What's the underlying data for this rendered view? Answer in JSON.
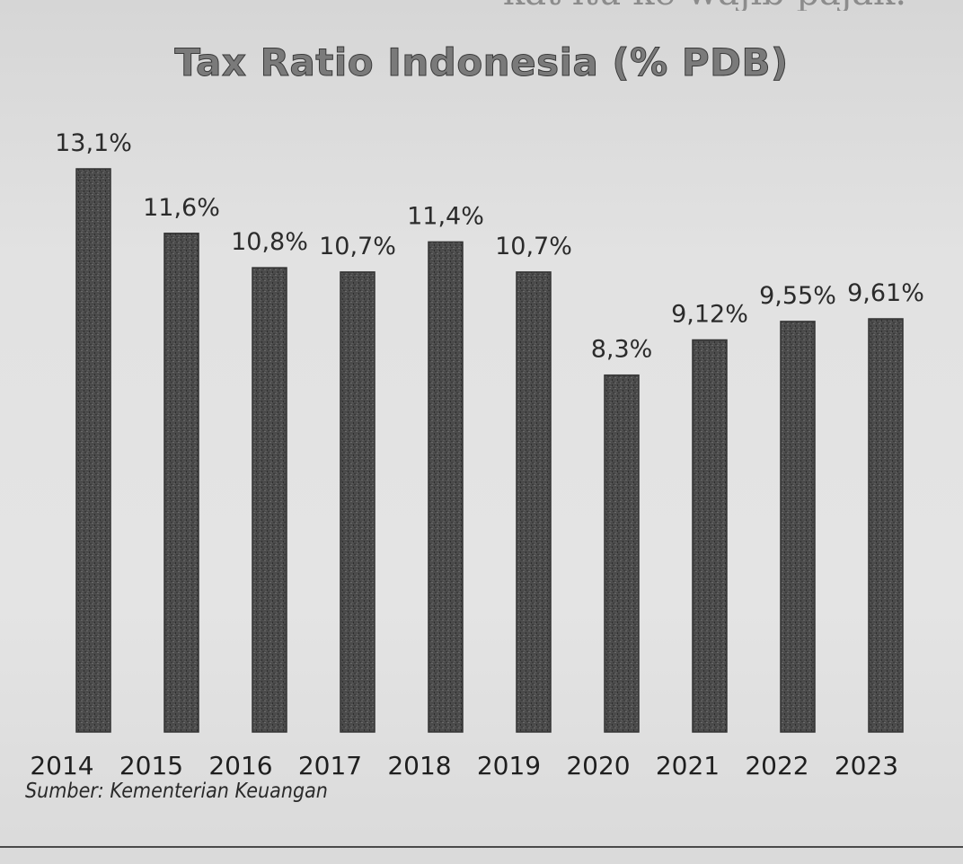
{
  "header": {
    "partial_text": "kat itu ke wajib pajak."
  },
  "chart_data": {
    "type": "bar",
    "title": "Tax Ratio Indonesia (% PDB)",
    "categories": [
      "2014",
      "2015",
      "2016",
      "2017",
      "2018",
      "2019",
      "2020",
      "2021",
      "2022",
      "2023"
    ],
    "values": [
      13.1,
      11.6,
      10.8,
      10.7,
      11.4,
      10.7,
      8.3,
      9.12,
      9.55,
      9.61
    ],
    "data_labels": [
      "13,1%",
      "11,6%",
      "10,8%",
      "10,7%",
      "11,4%",
      "10,7%",
      "8,3%",
      "9,12%",
      "9,55%",
      "9,61%"
    ],
    "xlabel": "",
    "ylabel": "",
    "grid": false,
    "legend": "none",
    "bar_color": "#4a4a4a"
  },
  "footer": {
    "source": "Sumber: Kementerian Keuangan"
  }
}
